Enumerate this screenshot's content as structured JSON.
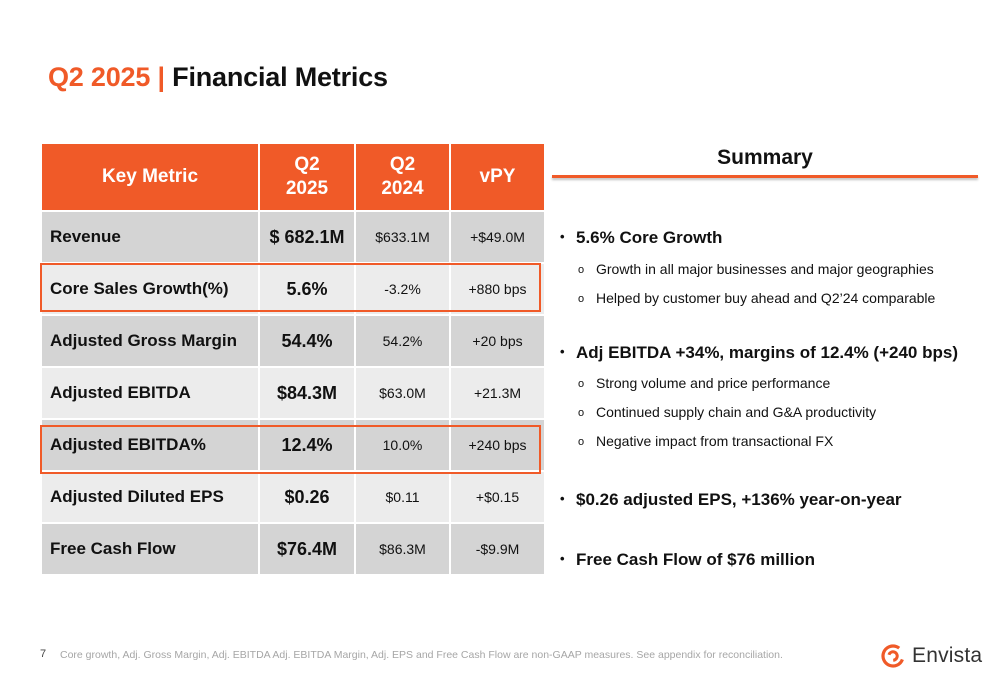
{
  "slide": {
    "title_accent": "Q2 2025 |",
    "title_rest": "Financial Metrics",
    "page_number": "7",
    "footnote": "Core growth, Adj. Gross Margin, Adj. EBITDA Adj. EBITDA Margin, Adj. EPS and Free Cash Flow are non-GAAP measures.  See appendix for reconciliation."
  },
  "table": {
    "headers": {
      "metric": "Key Metric",
      "q2_2025_line1": "Q2",
      "q2_2025_line2": "2025",
      "q2_2024_line1": "Q2",
      "q2_2024_line2": "2024",
      "vpy": "vPY"
    },
    "rows": [
      {
        "name": "Revenue",
        "q2_2025": "$  682.1M",
        "q2_2024": "$633.1M",
        "vpy": "+$49.0M"
      },
      {
        "name": "Core Sales Growth(%)",
        "q2_2025": "5.6%",
        "q2_2024": "-3.2%",
        "vpy": "+880 bps"
      },
      {
        "name": "Adjusted Gross Margin",
        "q2_2025": "54.4%",
        "q2_2024": "54.2%",
        "vpy": "+20 bps"
      },
      {
        "name": "Adjusted EBITDA",
        "q2_2025": "$84.3M",
        "q2_2024": "$63.0M",
        "vpy": "+21.3M"
      },
      {
        "name": "Adjusted EBITDA%",
        "q2_2025": "12.4%",
        "q2_2024": "10.0%",
        "vpy": "+240 bps"
      },
      {
        "name": "Adjusted Diluted EPS",
        "q2_2025": "$0.26",
        "q2_2024": "$0.11",
        "vpy": "+$0.15"
      },
      {
        "name": "Free Cash Flow",
        "q2_2025": "$76.4M",
        "q2_2024": "$86.3M",
        "vpy": "-$9.9M"
      }
    ]
  },
  "summary": {
    "title": "Summary",
    "bullets": [
      {
        "text": "5.6% Core Growth",
        "subs": [
          "Growth in all major businesses and major geographies",
          "Helped by customer buy ahead and Q2’24 comparable"
        ]
      },
      {
        "text": "Adj EBITDA +34%, margins of 12.4% (+240 bps)",
        "subs": [
          "Strong volume and price performance",
          "Continued supply chain and G&A productivity",
          "Negative impact from transactional FX"
        ]
      },
      {
        "text": "$0.26 adjusted EPS, +136% year-on-year",
        "subs": []
      },
      {
        "text": "Free Cash Flow of $76 million",
        "subs": []
      }
    ]
  },
  "logo": {
    "name": "Envista"
  },
  "colors": {
    "accent": "#f05a28",
    "row_dark": "#d4d4d4",
    "row_light": "#ececec"
  }
}
